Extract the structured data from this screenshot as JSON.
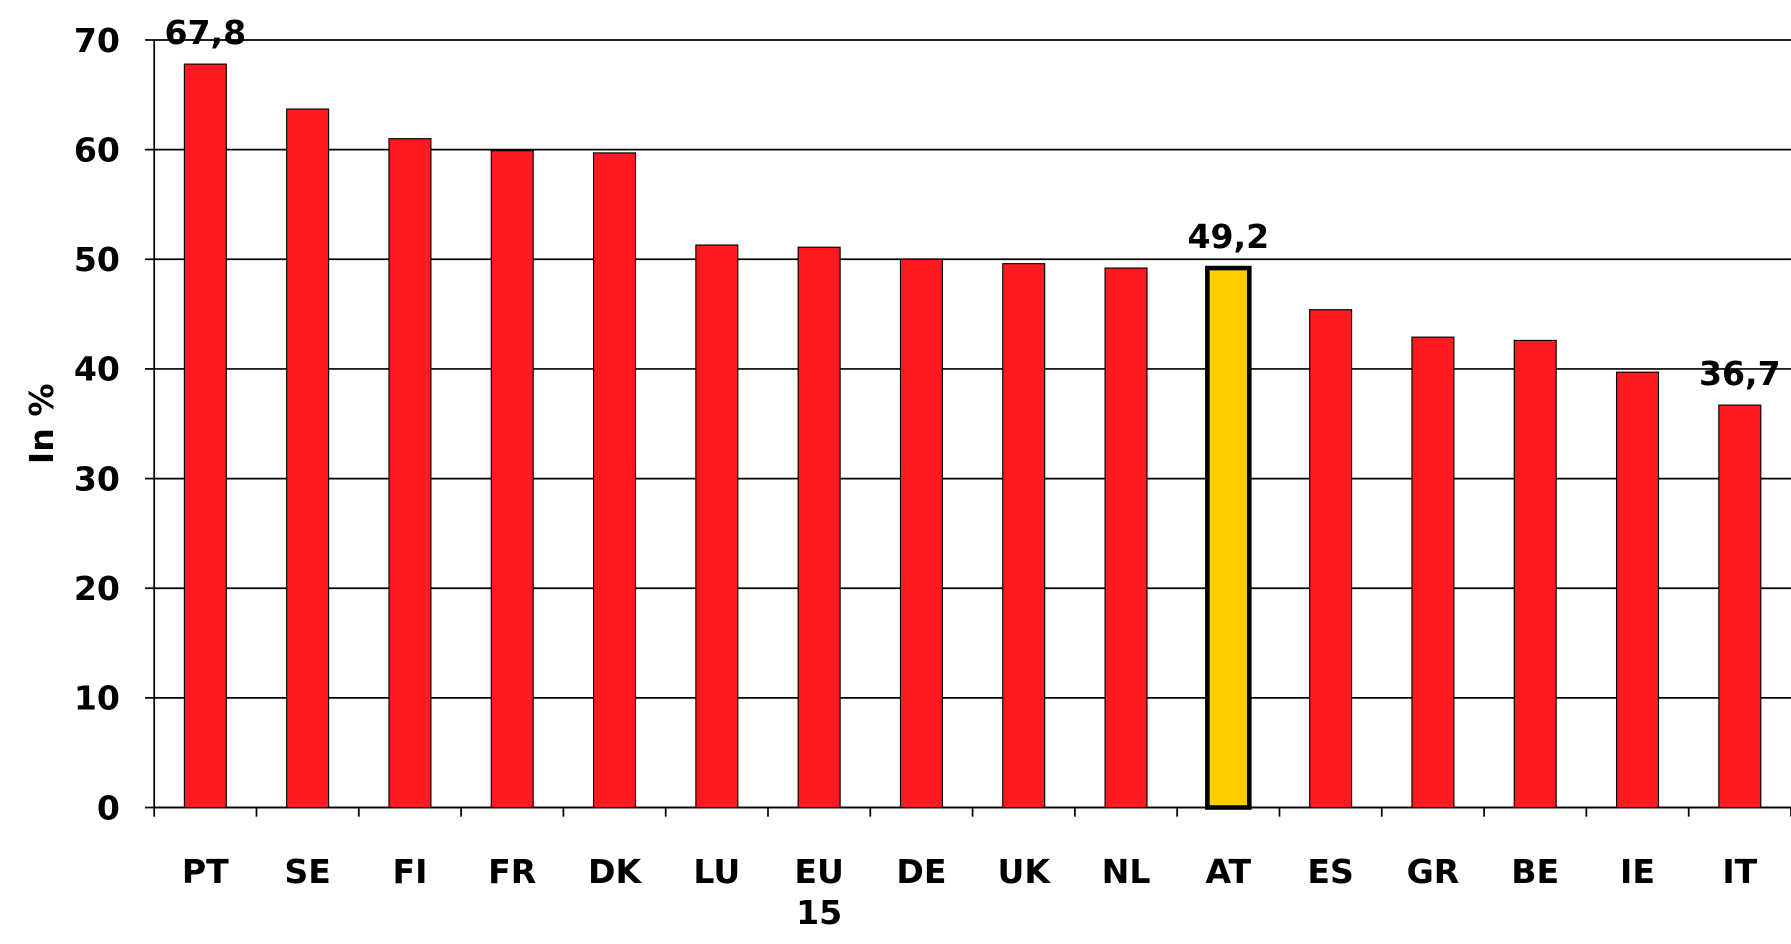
{
  "chart_data": {
    "type": "bar",
    "y_label": "In %",
    "categories": [
      "PT",
      "SE",
      "FI",
      "FR",
      "DK",
      "LU",
      "EU 15",
      "DE",
      "UK",
      "NL",
      "AT",
      "ES",
      "GR",
      "BE",
      "IE",
      "IT"
    ],
    "values": [
      67.8,
      63.7,
      61.0,
      59.9,
      59.7,
      51.3,
      51.1,
      50.0,
      49.6,
      49.2,
      49.2,
      45.4,
      42.9,
      42.6,
      39.7,
      36.7
    ],
    "value_labels": [
      "67,8",
      null,
      null,
      null,
      null,
      null,
      null,
      null,
      null,
      null,
      "49,2",
      null,
      null,
      null,
      null,
      "36,7"
    ],
    "colors": [
      "#ff1a22",
      "#ff1a22",
      "#ff1a22",
      "#ff1a22",
      "#ff1a22",
      "#ff1a22",
      "#ff1a22",
      "#ff1a22",
      "#ff1a22",
      "#ff1a22",
      "#ffcc00",
      "#ff1a22",
      "#ff1a22",
      "#ff1a22",
      "#ff1a22",
      "#ff1a22"
    ],
    "ylim": [
      0,
      70
    ],
    "yticks": [
      0,
      10,
      20,
      30,
      40,
      50,
      60,
      70
    ],
    "grid": true
  }
}
